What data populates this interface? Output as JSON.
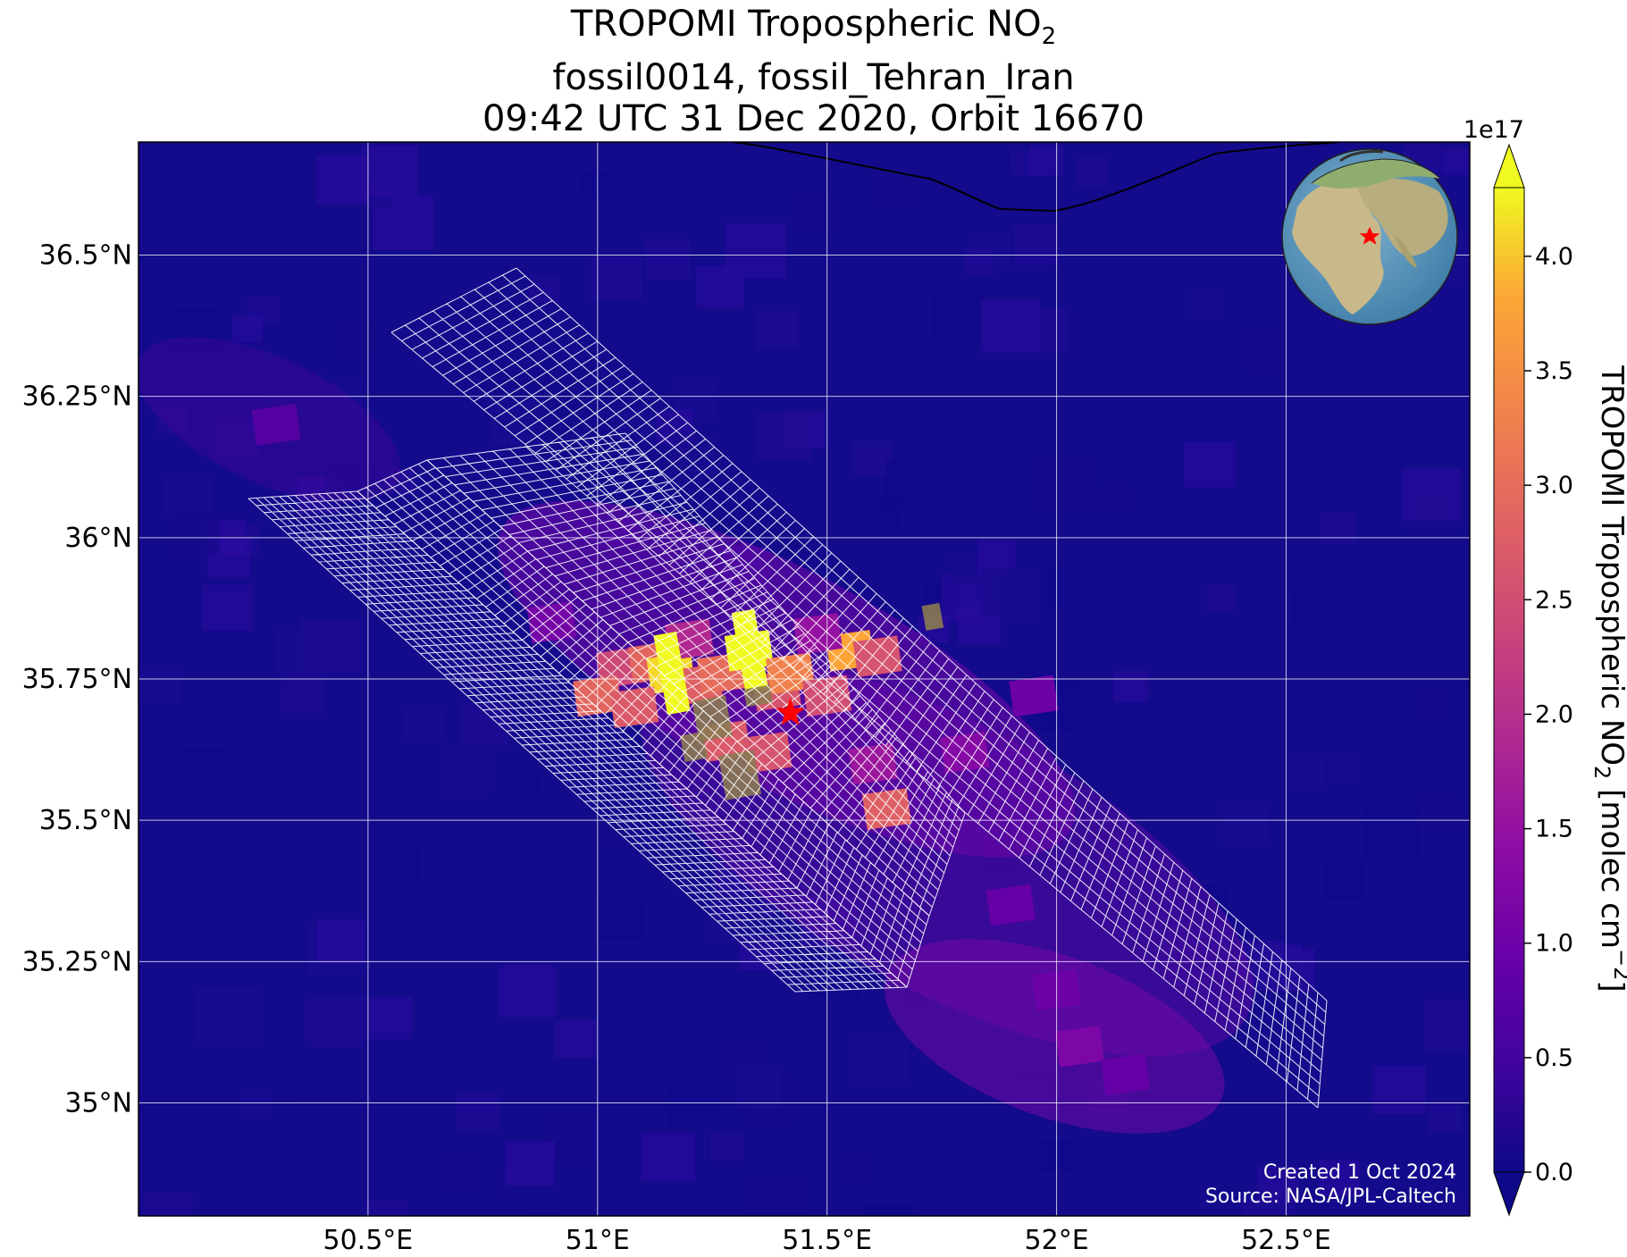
{
  "title": {
    "line1_prefix": "TROPOMI Tropospheric NO",
    "line1_sub": "2",
    "line2": "fossil0014, fossil_Tehran_Iran",
    "line3": "09:42 UTC 31 Dec 2020, Orbit 16670"
  },
  "map": {
    "lon_range": [
      50.0,
      52.9
    ],
    "lat_range": [
      34.8,
      36.7
    ],
    "lon_ticks": [
      {
        "value": 50.5,
        "label": "50.5°E"
      },
      {
        "value": 51.0,
        "label": "51°E"
      },
      {
        "value": 51.5,
        "label": "51.5°E"
      },
      {
        "value": 52.0,
        "label": "52°E"
      },
      {
        "value": 52.5,
        "label": "52.5°E"
      }
    ],
    "lat_ticks": [
      {
        "value": 35.0,
        "label": "35°N"
      },
      {
        "value": 35.25,
        "label": "35.25°N"
      },
      {
        "value": 35.5,
        "label": "35.5°N"
      },
      {
        "value": 35.75,
        "label": "35.75°N"
      },
      {
        "value": 36.0,
        "label": "36°N"
      },
      {
        "value": 36.25,
        "label": "36.25°N"
      },
      {
        "value": 36.5,
        "label": "36.5°N"
      }
    ],
    "gridlines": true,
    "site_marker": {
      "lon": 51.42,
      "lat": 35.69,
      "color": "#ff0000",
      "icon": "red-star-icon"
    },
    "credit_line1": "Created 1 Oct 2024",
    "credit_line2": "Source: NASA/JPL-Caltech",
    "inset": {
      "icon": "globe-icon",
      "placement": "top-right"
    }
  },
  "colorbar": {
    "multiplier": "1e17",
    "label_prefix": "TROPOMI Tropospheric NO",
    "label_sub": "2",
    "label_units": " [molec cm",
    "label_sup": "−2",
    "label_end": "]",
    "range": [
      0.0,
      4.3
    ],
    "ticks": [
      {
        "value": 0.0,
        "label": "0.0"
      },
      {
        "value": 0.5,
        "label": "0.5"
      },
      {
        "value": 1.0,
        "label": "1.0"
      },
      {
        "value": 1.5,
        "label": "1.5"
      },
      {
        "value": 2.0,
        "label": "2.0"
      },
      {
        "value": 2.5,
        "label": "2.5"
      },
      {
        "value": 3.0,
        "label": "3.0"
      },
      {
        "value": 3.5,
        "label": "3.5"
      },
      {
        "value": 4.0,
        "label": "4.0"
      }
    ],
    "colormap": "plasma",
    "extend": "both"
  },
  "chart_data": {
    "type": "heatmap",
    "units_scale": "1e17",
    "cells": [
      {
        "lon": 51.05,
        "lat": 35.77,
        "value": 2.4
      },
      {
        "lon": 51.12,
        "lat": 35.78,
        "value": 2.9
      },
      {
        "lon": 51.16,
        "lat": 35.76,
        "value": 4.1
      },
      {
        "lon": 51.22,
        "lat": 35.74,
        "value": 2.8
      },
      {
        "lon": 51.27,
        "lat": 35.76,
        "value": 3.0
      },
      {
        "lon": 51.33,
        "lat": 35.8,
        "value": 4.3
      },
      {
        "lon": 51.39,
        "lat": 35.73,
        "value": 2.6
      },
      {
        "lon": 51.42,
        "lat": 35.76,
        "value": 3.3
      },
      {
        "lon": 51.5,
        "lat": 35.72,
        "value": 2.5
      },
      {
        "lon": 51.55,
        "lat": 35.8,
        "value": 3.8
      },
      {
        "lon": 51.61,
        "lat": 35.79,
        "value": 2.6
      },
      {
        "lon": 51.28,
        "lat": 35.64,
        "value": 2.7
      },
      {
        "lon": 51.37,
        "lat": 35.62,
        "value": 2.6
      },
      {
        "lon": 51.63,
        "lat": 35.52,
        "value": 2.8
      },
      {
        "lon": 51.0,
        "lat": 35.72,
        "value": 2.9
      },
      {
        "lon": 51.08,
        "lat": 35.7,
        "value": 2.7
      },
      {
        "lon": 51.2,
        "lat": 35.82,
        "value": 1.9
      },
      {
        "lon": 51.48,
        "lat": 35.83,
        "value": 1.5
      },
      {
        "lon": 51.6,
        "lat": 35.6,
        "value": 1.6
      },
      {
        "lon": 51.8,
        "lat": 35.62,
        "value": 1.3
      },
      {
        "lon": 51.95,
        "lat": 35.72,
        "value": 1.0
      },
      {
        "lon": 52.05,
        "lat": 35.1,
        "value": 1.2
      },
      {
        "lon": 52.0,
        "lat": 35.2,
        "value": 1.0
      },
      {
        "lon": 51.9,
        "lat": 35.35,
        "value": 0.9
      },
      {
        "lon": 50.9,
        "lat": 35.85,
        "value": 1.1
      },
      {
        "lon": 50.3,
        "lat": 36.2,
        "value": 0.7
      },
      {
        "lon": 52.15,
        "lat": 35.05,
        "value": 0.9
      }
    ]
  }
}
